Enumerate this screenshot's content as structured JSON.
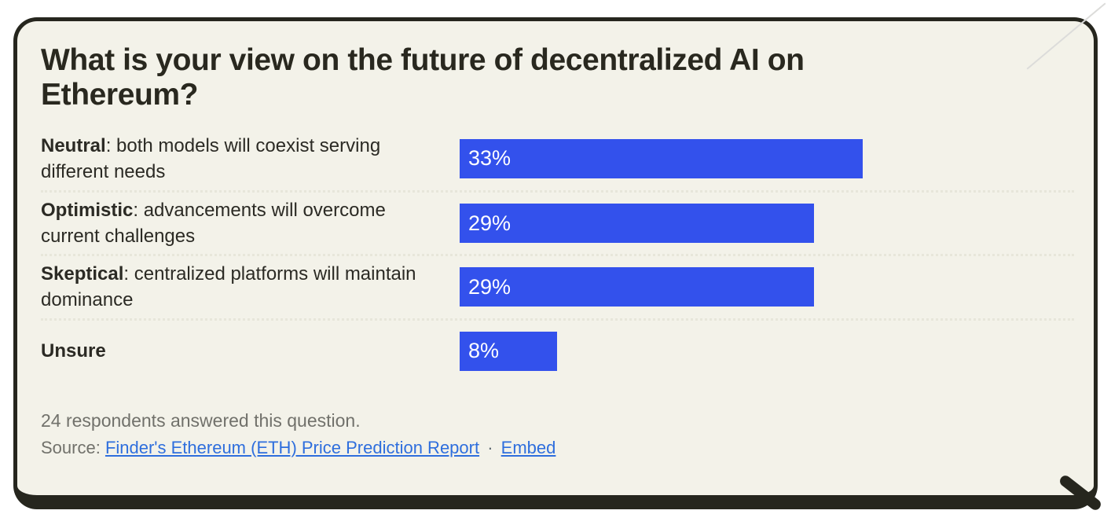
{
  "card": {
    "title": "What is your view on the future of decentralized AI on Ethereum?",
    "footer": {
      "respondents_note": "24 respondents answered this question.",
      "source_prefix": "Source:",
      "source_link": "Finder's Ethereum (ETH) Price Prediction Report",
      "separator": "·",
      "embed_link": "Embed"
    }
  },
  "chart_data": {
    "type": "bar",
    "orientation": "horizontal",
    "title": "What is your view on the future of decentralized AI on Ethereum?",
    "categories": [
      "Neutral: both models will coexist serving different needs",
      "Optimistic: advancements will overcome current challenges",
      "Skeptical: centralized platforms will maintain dominance",
      "Unsure"
    ],
    "values": [
      33,
      29,
      29,
      8
    ],
    "value_labels": [
      "33%",
      "29%",
      "29%",
      "8%"
    ],
    "rows": [
      {
        "label_bold": "Neutral",
        "label_rest": ": both models will coexist serving different needs",
        "value": 33,
        "value_label": "33%"
      },
      {
        "label_bold": "Optimistic",
        "label_rest": ": advancements will overcome current challenges",
        "value": 29,
        "value_label": "29%"
      },
      {
        "label_bold": "Skeptical",
        "label_rest": ": centralized platforms will maintain dominance",
        "value": 29,
        "value_label": "29%"
      },
      {
        "label_bold": "Unsure",
        "label_rest": "",
        "value": 8,
        "value_label": "8%"
      }
    ],
    "bar_color": "#3351ec",
    "xlim": [
      0,
      50
    ],
    "grid": false,
    "legend": false,
    "xlabel": "",
    "ylabel": ""
  }
}
